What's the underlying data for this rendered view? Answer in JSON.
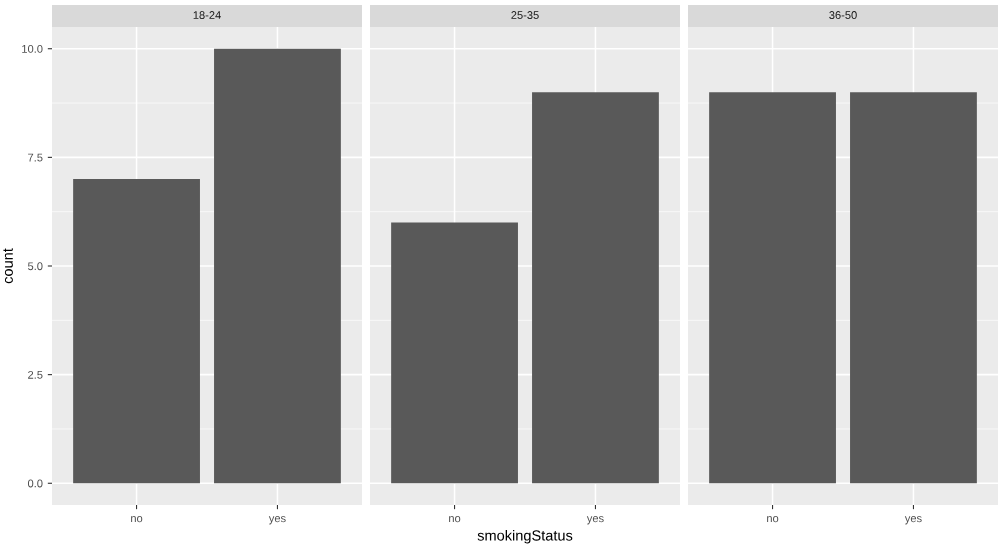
{
  "chart_data": [
    {
      "type": "bar",
      "title": "18-24",
      "ylabel": "count",
      "categories": [
        "no",
        "yes"
      ],
      "values": [
        7,
        10
      ],
      "color": "#595959",
      "ylim": [
        -0.5,
        10.5
      ],
      "yticks": [
        {
          "value": 0,
          "label": "0.0"
        },
        {
          "value": 2.5,
          "label": "2.5"
        },
        {
          "value": 5,
          "label": "5.0"
        },
        {
          "value": 7.5,
          "label": "7.5"
        },
        {
          "value": 10,
          "label": "10.0"
        }
      ],
      "grid": true
    },
    {
      "type": "bar",
      "title": "25-35",
      "xlabel": "smokingStatus",
      "categories": [
        "no",
        "yes"
      ],
      "values": [
        6,
        9
      ],
      "color": "#595959",
      "ylim": [
        -0.5,
        10.5
      ],
      "yticks": [
        0,
        2.5,
        5,
        7.5,
        10
      ],
      "grid": true,
      "tick_labels": "x"
    },
    {
      "type": "bar",
      "title": "36-50",
      "categories": [
        "no",
        "yes"
      ],
      "values": [
        9,
        9
      ],
      "color": "#595959",
      "ylim": [
        -0.5,
        10.5
      ],
      "yticks": [
        0,
        2.5,
        5,
        7.5,
        10
      ],
      "grid": true,
      "tick_labels": "x"
    }
  ]
}
